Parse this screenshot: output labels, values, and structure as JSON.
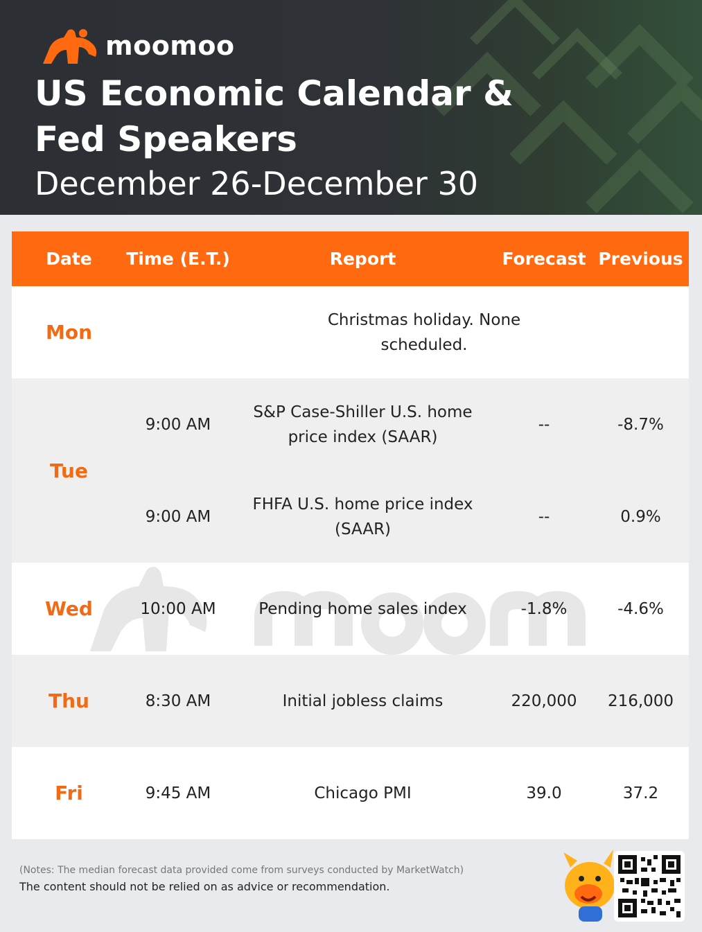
{
  "brand": {
    "name": "moomoo",
    "accent": "#ff6a11"
  },
  "header": {
    "title_line1": "US Economic Calendar &",
    "title_line2": "Fed Speakers",
    "date_range": "December 26-December 30"
  },
  "table": {
    "columns": [
      "Date",
      "Time (E.T.)",
      "Report",
      "Forecast",
      "Previous"
    ],
    "rows": [
      {
        "day": "Mon",
        "entries": [
          {
            "time": "",
            "report": "Christmas holiday. None scheduled.",
            "forecast": "",
            "previous": ""
          }
        ]
      },
      {
        "day": "Tue",
        "entries": [
          {
            "time": "9:00 AM",
            "report": "S&P Case-Shiller U.S. home price index (SAAR)",
            "forecast": "--",
            "previous": "-8.7%"
          },
          {
            "time": "9:00 AM",
            "report": "FHFA U.S. home price index (SAAR)",
            "forecast": "--",
            "previous": "0.9%"
          }
        ]
      },
      {
        "day": "Wed",
        "entries": [
          {
            "time": "10:00 AM",
            "report": "Pending home sales index",
            "forecast": "-1.8%",
            "previous": "-4.6%"
          }
        ]
      },
      {
        "day": "Thu",
        "entries": [
          {
            "time": "8:30 AM",
            "report": "Initial jobless claims",
            "forecast": "220,000",
            "previous": "216,000"
          }
        ]
      },
      {
        "day": "Fri",
        "entries": [
          {
            "time": "9:45 AM",
            "report": "Chicago PMI",
            "forecast": "39.0",
            "previous": "37.2"
          }
        ]
      }
    ]
  },
  "footer": {
    "notes": "(Notes: The median forecast data provided come from surveys conducted by MarketWatch)",
    "disclaimer": "The content should not be relied on as advice or recommendation."
  },
  "icons": {
    "logo": "moomoo-bull-logo-icon",
    "mascot": "moomoo-mascot-icon",
    "qr": "qr-code-icon"
  }
}
